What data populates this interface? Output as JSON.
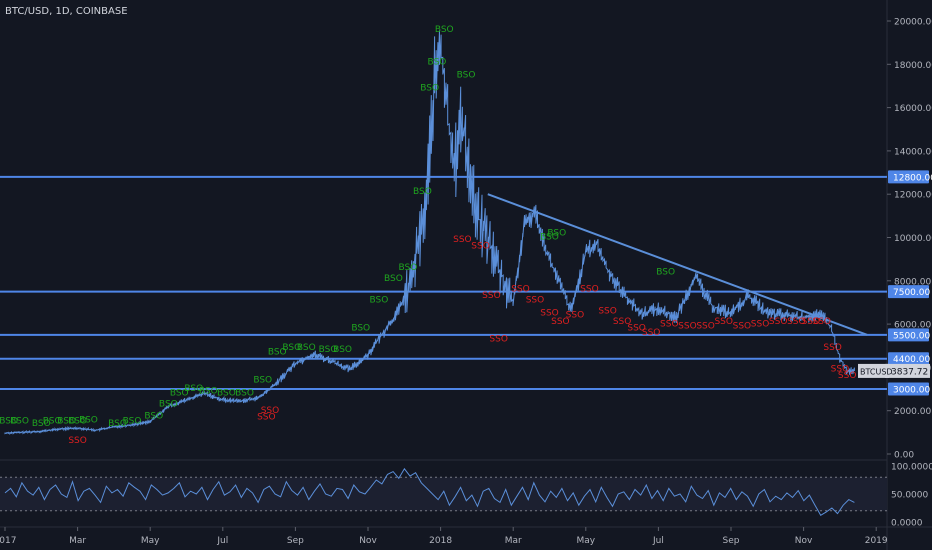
{
  "title": "BTC/USD, 1D, COINBASE",
  "colors": {
    "background": "#131722",
    "price_line": "#5b8fd9",
    "level_line": "#4f86e8",
    "trend_line": "#5b8fd9",
    "bso": "#1fa51f",
    "sso": "#e02020",
    "osc_line": "#5b8fd9",
    "axis_text": "#b2b5be"
  },
  "chart_data": {
    "type": "line",
    "symbol": "BTCUSD",
    "last_price": "3837.72",
    "ylim": [
      0,
      20500
    ],
    "y_ticks": [
      "20000.00",
      "18000.00",
      "16000.00",
      "14000.00",
      "12000.00",
      "10000.00",
      "8000.00",
      "6000.00",
      "4000.00",
      "2000.00",
      "0.00"
    ],
    "x_ticks": [
      "2017",
      "Mar",
      "May",
      "Jul",
      "Sep",
      "Nov",
      "2018",
      "Mar",
      "May",
      "Jul",
      "Sep",
      "Nov",
      "2019"
    ],
    "x_tick_month_index": [
      0,
      2,
      4,
      6,
      8,
      10,
      12,
      14,
      16,
      18,
      20,
      22,
      24
    ],
    "horizontal_levels": [
      {
        "label": "12800.00",
        "value": 12800
      },
      {
        "label": "7500.00",
        "value": 7500
      },
      {
        "label": "5500.00",
        "value": 5500
      },
      {
        "label": "4400.00",
        "value": 4400
      },
      {
        "label": "3000.00",
        "value": 3000
      }
    ],
    "trend_line": {
      "from": {
        "month": 13.3,
        "value": 12000
      },
      "to": {
        "month": 23.8,
        "value": 5600
      }
    },
    "price_series": {
      "month": [
        0,
        0.5,
        1,
        1.5,
        2,
        2.5,
        3,
        3.5,
        4,
        4.5,
        5,
        5.5,
        6,
        6.5,
        7,
        7.5,
        8,
        8.5,
        9,
        9.5,
        10,
        10.5,
        10.8,
        11,
        11.2,
        11.4,
        11.6,
        11.8,
        12,
        12.2,
        12.4,
        12.6,
        12.8,
        13,
        13.3,
        13.6,
        14,
        14.3,
        14.6,
        15,
        15.3,
        15.6,
        16,
        16.3,
        16.6,
        17,
        17.5,
        18,
        18.5,
        19,
        19.5,
        20,
        20.5,
        21,
        21.5,
        22,
        22.3,
        22.6,
        22.8,
        23,
        23.2,
        23.4
      ],
      "value": [
        970,
        1000,
        1050,
        1150,
        1200,
        1100,
        1250,
        1350,
        1500,
        2200,
        2500,
        2800,
        2500,
        2450,
        2600,
        3300,
        4200,
        4600,
        4300,
        3900,
        4600,
        5800,
        6500,
        7200,
        8000,
        9800,
        11500,
        16500,
        19000,
        15500,
        13500,
        15500,
        13000,
        11000,
        10000,
        8500,
        7000,
        10500,
        11200,
        9000,
        7800,
        6600,
        9300,
        9700,
        8500,
        7500,
        6500,
        6700,
        6300,
        8200,
        6800,
        6500,
        7300,
        6500,
        6400,
        6300,
        6400,
        6300,
        5600,
        4400,
        3800,
        3837.72
      ]
    },
    "bso_labels": [
      {
        "month": 0.1,
        "value": 1400
      },
      {
        "month": 0.4,
        "value": 1400
      },
      {
        "month": 1.0,
        "value": 1300
      },
      {
        "month": 1.3,
        "value": 1400
      },
      {
        "month": 1.7,
        "value": 1400
      },
      {
        "month": 2.0,
        "value": 1400
      },
      {
        "month": 2.3,
        "value": 1450
      },
      {
        "month": 3.1,
        "value": 1300
      },
      {
        "month": 3.5,
        "value": 1400
      },
      {
        "month": 4.1,
        "value": 1650
      },
      {
        "month": 4.5,
        "value": 2200
      },
      {
        "month": 4.8,
        "value": 2700
      },
      {
        "month": 5.2,
        "value": 2900
      },
      {
        "month": 5.6,
        "value": 2800
      },
      {
        "month": 6.1,
        "value": 2700
      },
      {
        "month": 6.6,
        "value": 2700
      },
      {
        "month": 7.1,
        "value": 3300
      },
      {
        "month": 7.5,
        "value": 4600
      },
      {
        "month": 7.9,
        "value": 4800
      },
      {
        "month": 8.3,
        "value": 4800
      },
      {
        "month": 8.9,
        "value": 4700
      },
      {
        "month": 9.3,
        "value": 4700
      },
      {
        "month": 9.8,
        "value": 5700
      },
      {
        "month": 10.3,
        "value": 7000
      },
      {
        "month": 10.7,
        "value": 8000
      },
      {
        "month": 11.1,
        "value": 8500
      },
      {
        "month": 11.5,
        "value": 12000
      },
      {
        "month": 11.7,
        "value": 16800
      },
      {
        "month": 11.9,
        "value": 18000
      },
      {
        "month": 12.1,
        "value": 19500
      },
      {
        "month": 12.7,
        "value": 17400
      },
      {
        "month": 15.0,
        "value": 9900
      },
      {
        "month": 15.2,
        "value": 10100
      },
      {
        "month": 18.2,
        "value": 8300
      }
    ],
    "sso_labels": [
      {
        "month": 2.0,
        "value": 500
      },
      {
        "month": 7.2,
        "value": 1600
      },
      {
        "month": 7.3,
        "value": 1900
      },
      {
        "month": 12.6,
        "value": 9800
      },
      {
        "month": 13.1,
        "value": 9500
      },
      {
        "month": 13.4,
        "value": 7200
      },
      {
        "month": 13.6,
        "value": 5200
      },
      {
        "month": 14.2,
        "value": 7500
      },
      {
        "month": 14.6,
        "value": 7000
      },
      {
        "month": 15.0,
        "value": 6400
      },
      {
        "month": 15.3,
        "value": 6000
      },
      {
        "month": 15.7,
        "value": 6300
      },
      {
        "month": 16.1,
        "value": 7500
      },
      {
        "month": 16.6,
        "value": 6500
      },
      {
        "month": 17.0,
        "value": 6000
      },
      {
        "month": 17.4,
        "value": 5700
      },
      {
        "month": 17.8,
        "value": 5500
      },
      {
        "month": 18.3,
        "value": 5900
      },
      {
        "month": 18.8,
        "value": 5800
      },
      {
        "month": 19.3,
        "value": 5800
      },
      {
        "month": 19.8,
        "value": 6000
      },
      {
        "month": 20.3,
        "value": 5800
      },
      {
        "month": 20.8,
        "value": 5900
      },
      {
        "month": 21.3,
        "value": 6000
      },
      {
        "month": 21.8,
        "value": 6000
      },
      {
        "month": 22.2,
        "value": 6000
      },
      {
        "month": 22.5,
        "value": 6000
      },
      {
        "month": 22.8,
        "value": 4800
      },
      {
        "month": 23.0,
        "value": 3800
      },
      {
        "month": 23.2,
        "value": 3500
      }
    ],
    "oscillator": {
      "ylim": [
        0,
        100
      ],
      "y_ticks": [
        "100.0000",
        "50.0000",
        "0.0000"
      ],
      "upper_band": 80,
      "lower_band": 20,
      "value": [
        52,
        60,
        45,
        70,
        55,
        48,
        62,
        40,
        58,
        66,
        50,
        44,
        72,
        38,
        55,
        60,
        48,
        35,
        64,
        52,
        58,
        46,
        70,
        62,
        55,
        40,
        66,
        58,
        48,
        52,
        60,
        70,
        45,
        55,
        50,
        62,
        40,
        58,
        72,
        48,
        54,
        66,
        44,
        60,
        52,
        35,
        58,
        64,
        50,
        45,
        72,
        56,
        48,
        62,
        40,
        55,
        68,
        50,
        46,
        60,
        58,
        42,
        66,
        54,
        50,
        62,
        75,
        68,
        85,
        90,
        78,
        95,
        82,
        88,
        70,
        60,
        50,
        40,
        55,
        30,
        45,
        62,
        38,
        48,
        28,
        55,
        60,
        42,
        35,
        58,
        30,
        46,
        62,
        40,
        70,
        48,
        36,
        55,
        44,
        60,
        38,
        52,
        30,
        46,
        58,
        36,
        62,
        44,
        28,
        50,
        54,
        40,
        58,
        48,
        66,
        42,
        56,
        38,
        60,
        46,
        50,
        36,
        64,
        48,
        42,
        56,
        30,
        52,
        44,
        60,
        40,
        54,
        46,
        28,
        50,
        58,
        36,
        46,
        40,
        52,
        44,
        56,
        38,
        48,
        30,
        12,
        18,
        25,
        15,
        30,
        40,
        35
      ]
    }
  }
}
